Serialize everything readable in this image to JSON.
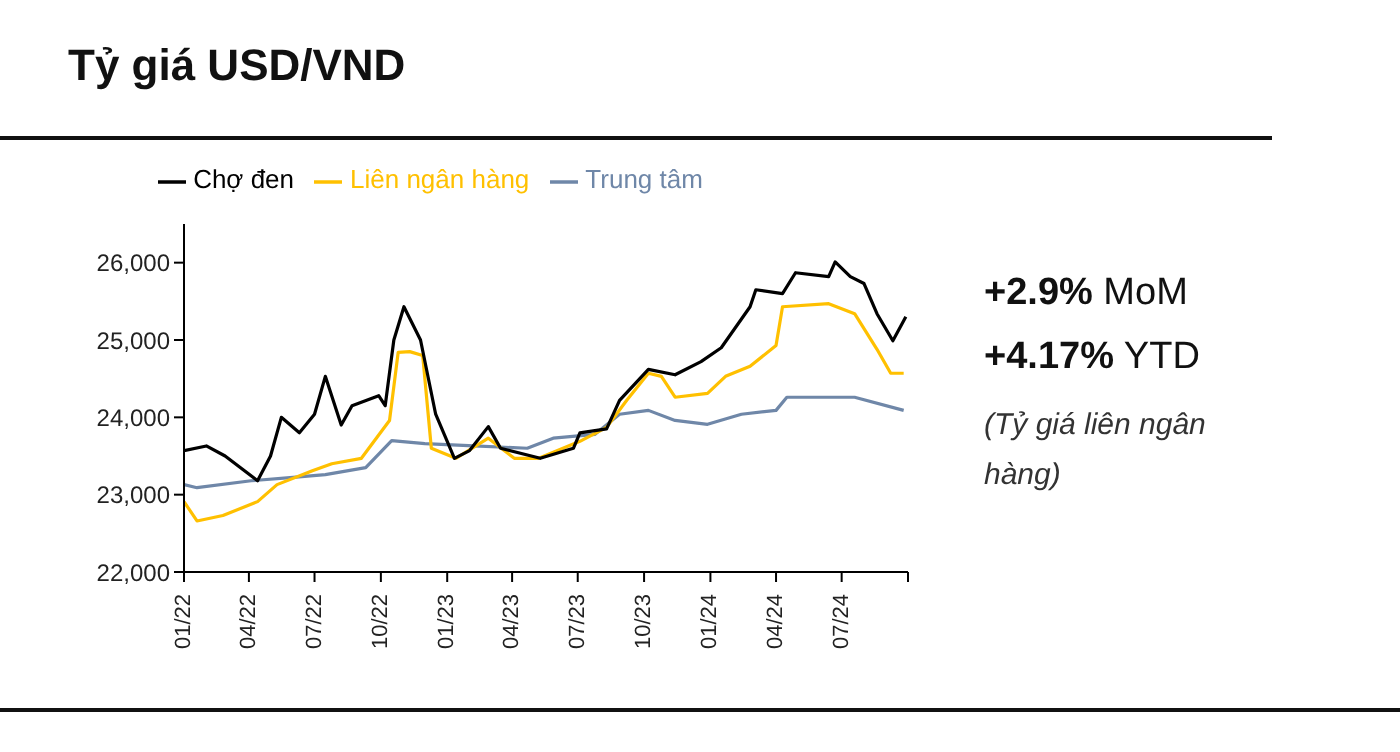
{
  "chart_data": {
    "type": "line",
    "title": "Tỷ giá USD/VND",
    "legend": "top",
    "xlim": [
      "2022-01",
      "2024-10"
    ],
    "xticks": [
      {
        "value": "2022-01",
        "label": "01/22"
      },
      {
        "value": "2022-04",
        "label": "04/22"
      },
      {
        "value": "2022-07",
        "label": "07/22"
      },
      {
        "value": "2022-10",
        "label": "10/22"
      },
      {
        "value": "2023-01",
        "label": "01/23"
      },
      {
        "value": "2023-04",
        "label": "04/23"
      },
      {
        "value": "2023-07",
        "label": "07/23"
      },
      {
        "value": "2023-10",
        "label": "10/23"
      },
      {
        "value": "2024-01",
        "label": "01/24"
      },
      {
        "value": "2024-04",
        "label": "04/24"
      },
      {
        "value": "2024-07",
        "label": "07/24"
      },
      {
        "value": "2024-10",
        "label": null
      }
    ],
    "ylim": [
      22000,
      26500
    ],
    "yticks": [
      {
        "value": 22000,
        "label": "22,000"
      },
      {
        "value": 23000,
        "label": "23,000"
      },
      {
        "value": 24000,
        "label": "24,000"
      },
      {
        "value": 25000,
        "label": "25,000"
      },
      {
        "value": 26000,
        "label": "26,000"
      }
    ],
    "series": [
      {
        "name": "Trung tâm",
        "color": "#6f87a8",
        "x": [
          "2022-01-01",
          "2022-01-19",
          "2022-04-04",
          "2022-05-28",
          "2022-07-16",
          "2022-09-10",
          "2022-10-16",
          "2022-12-01",
          "2023-02-07",
          "2023-04-22",
          "2023-05-28",
          "2023-07-25",
          "2023-08-28",
          "2023-10-07",
          "2023-11-13",
          "2023-12-28",
          "2024-02-13",
          "2024-04-01",
          "2024-04-16",
          "2024-07-19",
          "2024-09-25"
        ],
        "values": [
          23130,
          23090,
          23180,
          23220,
          23260,
          23350,
          23700,
          23660,
          23630,
          23600,
          23730,
          23780,
          24040,
          24090,
          23960,
          23910,
          24040,
          24090,
          24260,
          24260,
          24090
        ]
      },
      {
        "name": "Liên ngân hàng",
        "color": "#ffc000",
        "x": [
          "2022-01-01",
          "2022-01-19",
          "2022-02-24",
          "2022-04-13",
          "2022-05-10",
          "2022-06-28",
          "2022-07-25",
          "2022-09-04",
          "2022-10-13",
          "2022-10-25",
          "2022-11-10",
          "2022-11-28",
          "2022-12-10",
          "2023-01-13",
          "2023-02-27",
          "2023-04-04",
          "2023-05-08",
          "2023-07-04",
          "2023-08-10",
          "2023-09-07",
          "2023-10-07",
          "2023-10-25",
          "2023-11-13",
          "2023-12-28",
          "2024-01-22",
          "2024-02-25",
          "2024-04-01",
          "2024-04-10",
          "2024-06-13",
          "2024-07-19",
          "2024-08-19",
          "2024-09-07",
          "2024-09-25"
        ],
        "values": [
          22910,
          22660,
          22730,
          22910,
          23130,
          23310,
          23400,
          23470,
          23960,
          24840,
          24850,
          24800,
          23600,
          23470,
          23730,
          23470,
          23470,
          23690,
          23870,
          24220,
          24570,
          24530,
          24260,
          24310,
          24530,
          24660,
          24930,
          25430,
          25470,
          25340,
          24880,
          24570,
          24570
        ]
      },
      {
        "name": "Chợ đen",
        "color": "#000000",
        "x": [
          "2022-01-01",
          "2022-02-01",
          "2022-02-27",
          "2022-04-13",
          "2022-05-01",
          "2022-05-16",
          "2022-06-10",
          "2022-07-01",
          "2022-07-16",
          "2022-08-07",
          "2022-08-22",
          "2022-09-28",
          "2022-10-07",
          "2022-10-19",
          "2022-11-02",
          "2022-11-25",
          "2022-12-16",
          "2023-01-11",
          "2023-02-01",
          "2023-02-27",
          "2023-03-16",
          "2023-05-10",
          "2023-06-25",
          "2023-07-04",
          "2023-08-10",
          "2023-08-28",
          "2023-10-07",
          "2023-11-13",
          "2023-12-19",
          "2024-01-16",
          "2024-02-25",
          "2024-03-04",
          "2024-04-10",
          "2024-04-28",
          "2024-06-13",
          "2024-06-22",
          "2024-07-13",
          "2024-08-01",
          "2024-08-19",
          "2024-09-10",
          "2024-09-28"
        ],
        "values": [
          23570,
          23630,
          23500,
          23180,
          23500,
          24000,
          23800,
          24040,
          24530,
          23900,
          24150,
          24280,
          24150,
          25000,
          25430,
          25000,
          24040,
          23470,
          23570,
          23880,
          23600,
          23470,
          23600,
          23800,
          23850,
          24220,
          24620,
          24550,
          24720,
          24900,
          25430,
          25650,
          25600,
          25870,
          25820,
          26010,
          25820,
          25730,
          25340,
          24990,
          25300
        ]
      }
    ],
    "annotations": [
      "+2.9% MoM",
      "+4.17% YTD",
      "(Tỷ giá liên ngân hàng)"
    ]
  }
}
